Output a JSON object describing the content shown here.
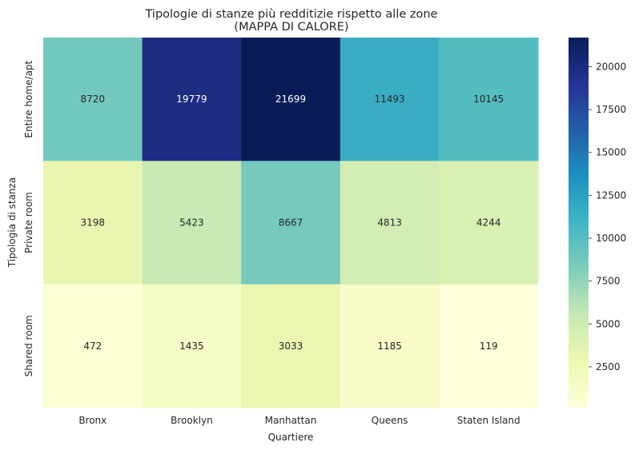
{
  "chart_data": {
    "type": "heatmap",
    "title": "Tipologie di stanze più redditizie rispetto alle zone",
    "subtitle": "(MAPPA DI CALORE)",
    "xlabel": "Quartiere",
    "ylabel": "Tipologia di stanza",
    "x_categories": [
      "Bronx",
      "Brooklyn",
      "Manhattan",
      "Queens",
      "Staten Island"
    ],
    "y_categories": [
      "Entire home/apt",
      "Private room",
      "Shared room"
    ],
    "values": [
      [
        8720,
        19779,
        21699,
        11493,
        10145
      ],
      [
        3198,
        5423,
        8667,
        4813,
        4244
      ],
      [
        472,
        1435,
        3033,
        1185,
        119
      ]
    ],
    "colorbar": {
      "colormap": "YlGnBu",
      "range": [
        119,
        21699
      ],
      "ticks": [
        2500,
        5000,
        7500,
        10000,
        12500,
        15000,
        17500,
        20000
      ]
    },
    "colormap_stops": [
      "#ffffd9",
      "#edf8b1",
      "#c7e9b4",
      "#7fcdbb",
      "#41b6c4",
      "#1d91c0",
      "#225ea8",
      "#253494",
      "#081d58"
    ]
  }
}
